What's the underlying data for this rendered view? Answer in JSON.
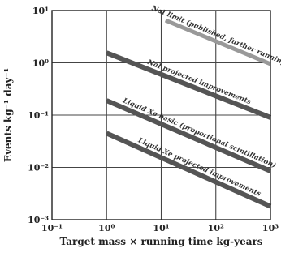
{
  "chart_data": {
    "type": "line",
    "xlabel": "Target mass × running time kg-years",
    "ylabel": "Events kg⁻¹ day⁻¹",
    "xscale": "log",
    "yscale": "log",
    "xlim": [
      0.1,
      1000
    ],
    "ylim": [
      0.001,
      10
    ],
    "grid": true,
    "legend": "none",
    "x_ticks": [
      {
        "value": 0.1,
        "label": "10⁻¹"
      },
      {
        "value": 1,
        "label": "10⁰"
      },
      {
        "value": 10,
        "label": "10¹"
      },
      {
        "value": 100,
        "label": "10²"
      },
      {
        "value": 1000,
        "label": "10³"
      }
    ],
    "y_ticks": [
      {
        "value": 0.001,
        "label": "10⁻³"
      },
      {
        "value": 0.01,
        "label": "10⁻²"
      },
      {
        "value": 0.1,
        "label": "10⁻¹"
      },
      {
        "value": 1,
        "label": "10⁰"
      },
      {
        "value": 10,
        "label": "10¹"
      }
    ],
    "series": [
      {
        "name": "NaI limit (published, further running)",
        "x": [
          12,
          1000
        ],
        "y": [
          6.5,
          0.95
        ],
        "color": "#999999",
        "band_width": 5
      },
      {
        "name": "NaI projected improvements",
        "x": [
          1,
          1000
        ],
        "y": [
          1.55,
          0.09
        ],
        "color": "#555555",
        "band_width": 6
      },
      {
        "name": "Liquid Xe basic (proportional scintillation)",
        "x": [
          1,
          1000
        ],
        "y": [
          0.19,
          0.0085
        ],
        "color": "#555555",
        "band_width": 6
      },
      {
        "name": "Liquid Xe projected improvements",
        "x": [
          1,
          1000
        ],
        "y": [
          0.045,
          0.0018
        ],
        "color": "#555555",
        "band_width": 6
      }
    ]
  }
}
